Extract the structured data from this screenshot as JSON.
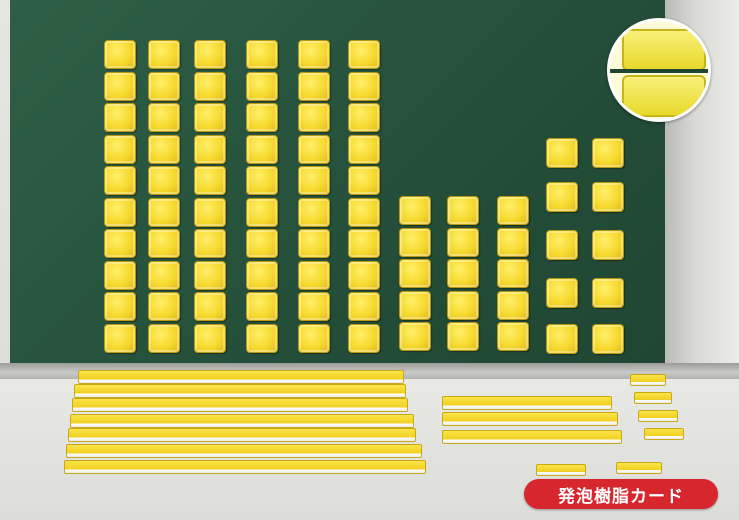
{
  "badge": {
    "text": "発泡樹脂カード"
  },
  "scene": {
    "board_color": "#2a5840",
    "tile_color": "#f4d730",
    "badge_color": "#d8262f"
  }
}
